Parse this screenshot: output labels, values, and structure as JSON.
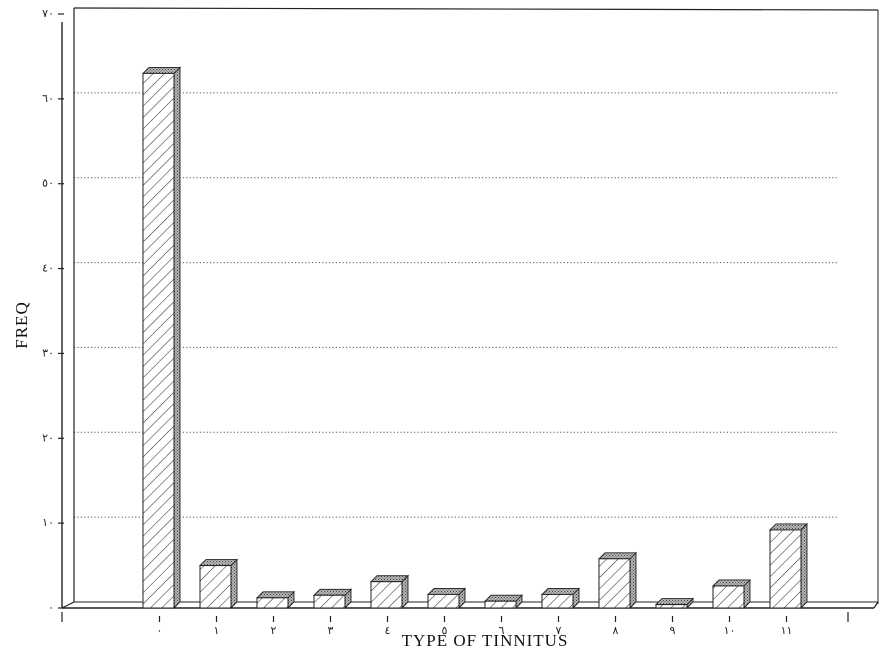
{
  "chart_data": {
    "type": "bar",
    "title": "",
    "xlabel": "TYPE OF TINNITUS",
    "ylabel": "FREQ",
    "categories": [
      "٠",
      "١",
      "٢",
      "٣",
      "٤",
      "٥",
      "٦",
      "٧",
      "٨",
      "٩",
      "١٠",
      "١١"
    ],
    "values": [
      63,
      5,
      1.2,
      1.5,
      3.1,
      1.6,
      0.8,
      1.6,
      5.8,
      0.4,
      2.6,
      9.2
    ],
    "ylim": [
      0,
      70
    ],
    "yticks": [
      0,
      10,
      20,
      30,
      40,
      50,
      60,
      70
    ],
    "ytick_labels": [
      "٠",
      "١٠",
      "٢٠",
      "٣٠",
      "٤٠",
      "٥٠",
      "٦٠",
      "٧٠"
    ],
    "grid": true,
    "legend": "none",
    "colors": {
      "bar_front": "#ffffff",
      "bar_hatch": "#333333",
      "bar_side": "#9a9a9a",
      "grid": "#555555",
      "axis": "#222222"
    }
  }
}
